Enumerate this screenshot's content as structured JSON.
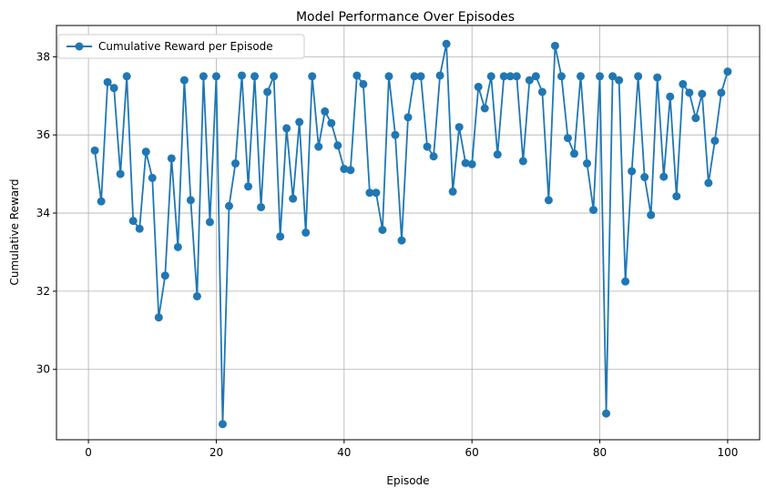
{
  "chart_data": {
    "type": "line",
    "title": "Model Performance Over Episodes",
    "xlabel": "Episode",
    "ylabel": "Cumulative Reward",
    "xlim": [
      -5,
      105
    ],
    "ylim": [
      28.2,
      38.8
    ],
    "xticks": [
      0,
      20,
      40,
      60,
      80,
      100
    ],
    "yticks": [
      30,
      32,
      34,
      36,
      38
    ],
    "grid": true,
    "legend_position": "top-left",
    "color": "#1f77b4",
    "markers": "circle",
    "series": [
      {
        "name": "Cumulative Reward per Episode",
        "x": [
          1,
          2,
          3,
          4,
          5,
          6,
          7,
          8,
          9,
          10,
          11,
          12,
          13,
          14,
          15,
          16,
          17,
          18,
          19,
          20,
          21,
          22,
          23,
          24,
          25,
          26,
          27,
          28,
          29,
          30,
          31,
          32,
          33,
          34,
          35,
          36,
          37,
          38,
          39,
          40,
          41,
          42,
          43,
          44,
          45,
          46,
          47,
          48,
          49,
          50,
          51,
          52,
          53,
          54,
          55,
          56,
          57,
          58,
          59,
          60,
          61,
          62,
          63,
          64,
          65,
          66,
          67,
          68,
          69,
          70,
          71,
          72,
          73,
          74,
          75,
          76,
          77,
          78,
          79,
          80,
          81,
          82,
          83,
          84,
          85,
          86,
          87,
          88,
          89,
          90,
          91,
          92,
          93,
          94,
          95,
          96,
          97,
          98,
          99,
          100
        ],
        "values": [
          35.6,
          34.3,
          37.35,
          37.2,
          35.0,
          37.5,
          33.8,
          33.6,
          35.57,
          34.9,
          31.33,
          32.4,
          35.4,
          33.13,
          37.4,
          34.33,
          31.87,
          37.5,
          33.77,
          37.5,
          28.6,
          34.18,
          35.27,
          37.52,
          34.68,
          37.5,
          34.15,
          37.1,
          37.5,
          33.4,
          36.17,
          34.37,
          36.33,
          33.5,
          37.5,
          35.7,
          36.6,
          36.3,
          35.73,
          35.13,
          35.1,
          37.52,
          37.3,
          34.52,
          34.52,
          33.57,
          37.5,
          36.0,
          33.3,
          36.45,
          37.5,
          37.5,
          35.7,
          35.45,
          37.52,
          38.33,
          34.55,
          36.2,
          35.28,
          35.25,
          37.23,
          36.68,
          37.5,
          35.5,
          37.5,
          37.5,
          37.5,
          35.33,
          37.4,
          37.5,
          37.1,
          34.33,
          38.28,
          37.5,
          35.92,
          35.52,
          37.5,
          35.27,
          34.08,
          37.5,
          28.87,
          37.5,
          37.4,
          32.25,
          35.07,
          37.5,
          34.92,
          33.95,
          37.47,
          34.93,
          36.98,
          34.43,
          37.3,
          37.08,
          36.43,
          37.05,
          34.77,
          35.85,
          37.08,
          37.62
        ]
      }
    ]
  }
}
